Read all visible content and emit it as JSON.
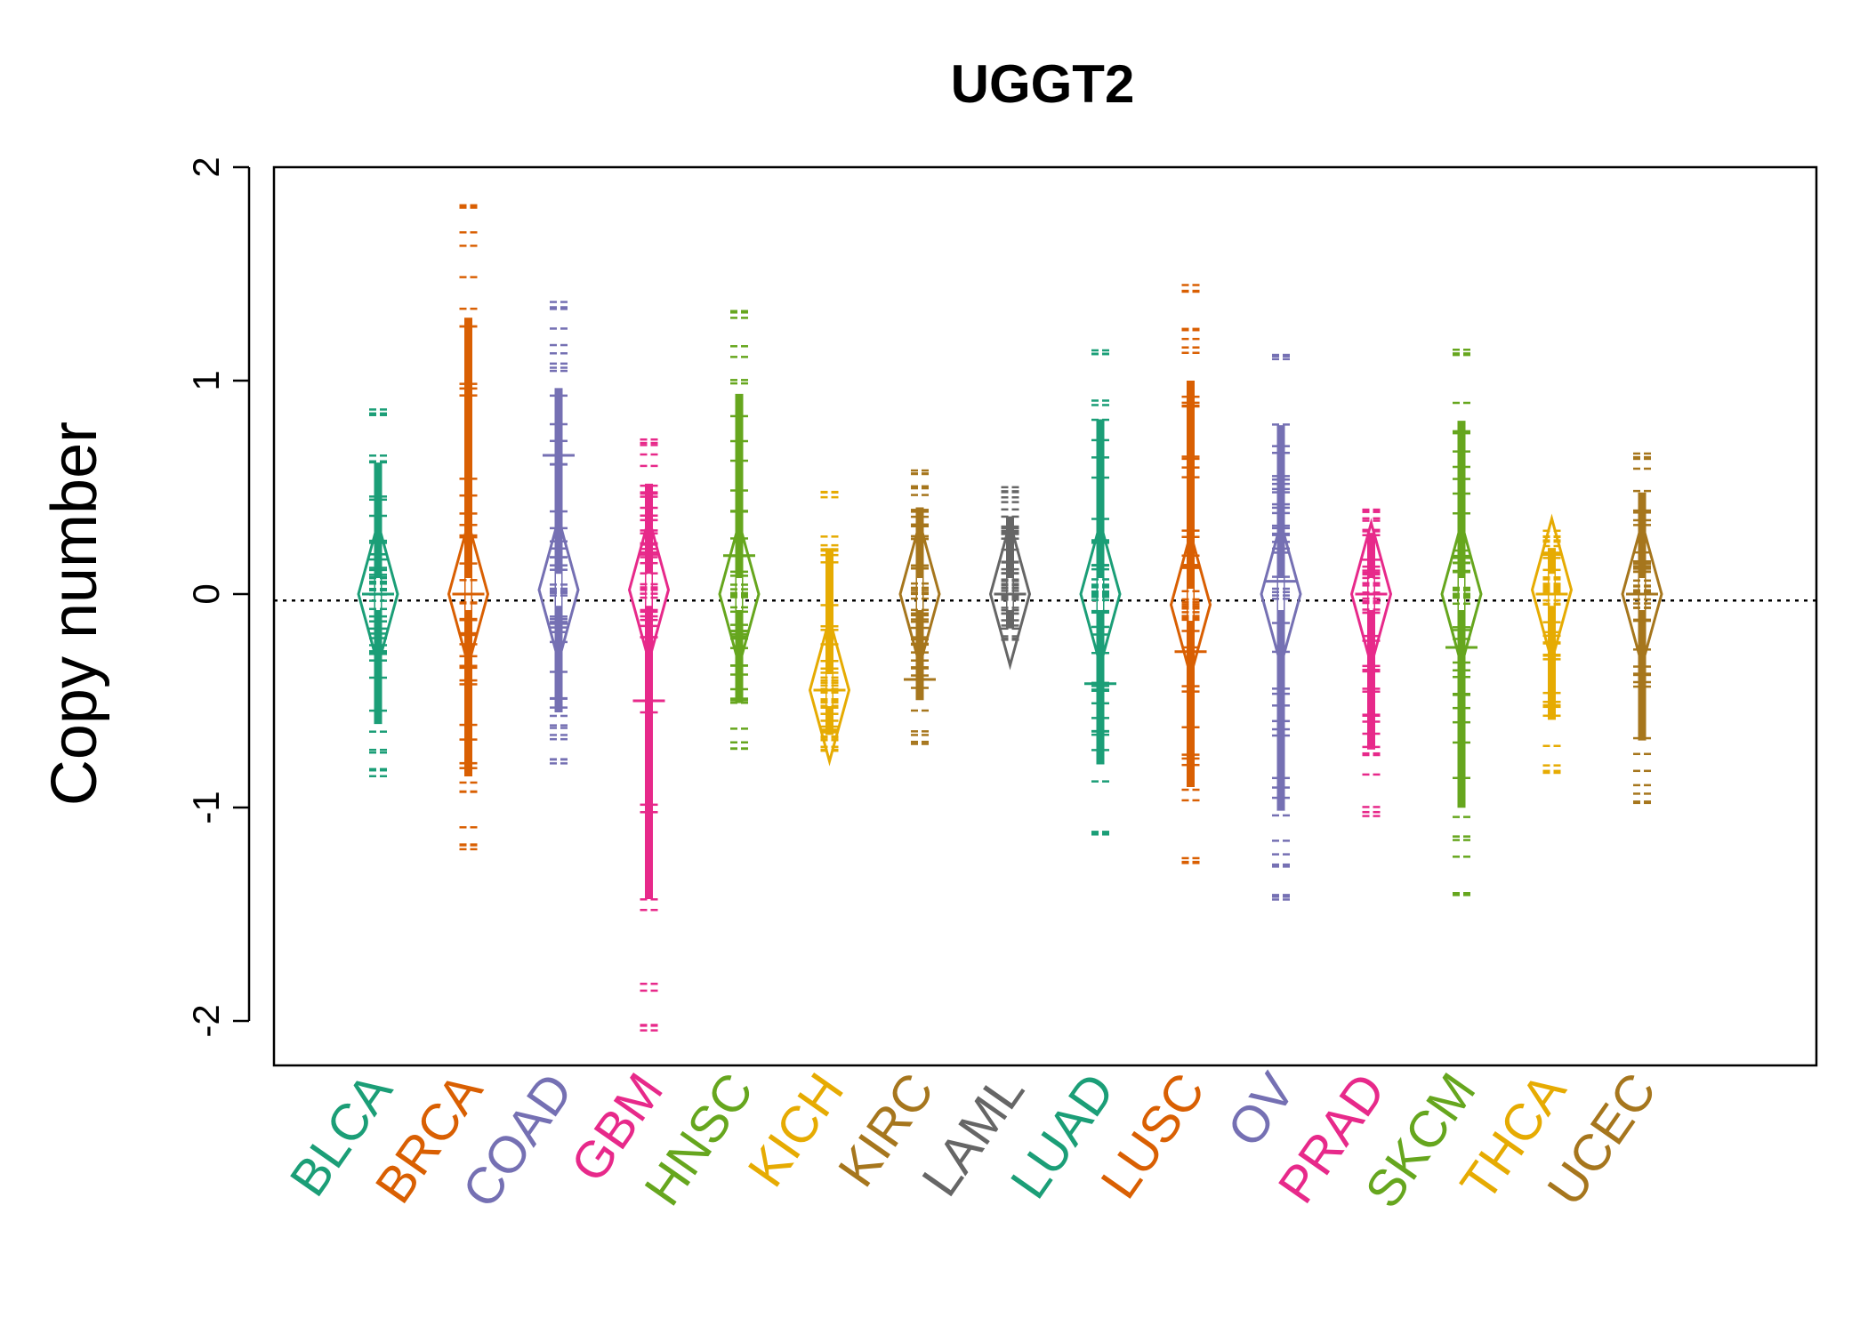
{
  "chart_data": {
    "type": "beanplot",
    "title": "UGGT2",
    "ylabel": "Copy number",
    "xlabel": "",
    "ylim": [
      -2.2,
      2.0
    ],
    "yticks": [
      -2,
      -1,
      0,
      1,
      2
    ],
    "reference_line": -0.03,
    "categories": [
      "BLCA",
      "BRCA",
      "COAD",
      "GBM",
      "HNSC",
      "KICH",
      "KIRC",
      "LAML",
      "LUAD",
      "LUSC",
      "OV",
      "PRAD",
      "SKCM",
      "THCA",
      "UCEC"
    ],
    "colors": [
      "#1b9e77",
      "#d95f02",
      "#7570b3",
      "#e7298a",
      "#66a61e",
      "#e6ab02",
      "#a6761d",
      "#666666",
      "#1b9e77",
      "#d95f02",
      "#7570b3",
      "#e7298a",
      "#66a61e",
      "#e6ab02",
      "#a6761d"
    ],
    "series": [
      {
        "category": "BLCA",
        "min": -0.87,
        "max": 0.88,
        "mean": 0.0,
        "peak": 0.0
      },
      {
        "category": "BRCA",
        "min": -1.22,
        "max": 1.85,
        "mean": 0.0,
        "peak": 0.0
      },
      {
        "category": "COAD",
        "min": -0.8,
        "max": 1.37,
        "mean": 0.65,
        "peak": 0.02
      },
      {
        "category": "GBM",
        "min": -2.05,
        "max": 0.73,
        "mean": -0.5,
        "peak": 0.02
      },
      {
        "category": "HNSC",
        "min": -0.73,
        "max": 1.34,
        "mean": 0.18,
        "peak": 0.0
      },
      {
        "category": "KICH",
        "min": -0.75,
        "max": 0.5,
        "mean": -0.45,
        "peak": -0.45
      },
      {
        "category": "KIRC",
        "min": -0.71,
        "max": 0.58,
        "mean": -0.4,
        "peak": 0.0
      },
      {
        "category": "LAML",
        "min": -0.23,
        "max": 0.52,
        "mean": 0.0,
        "peak": 0.0
      },
      {
        "category": "LUAD",
        "min": -1.14,
        "max": 1.17,
        "mean": -0.42,
        "peak": 0.0
      },
      {
        "category": "LUSC",
        "min": -1.27,
        "max": 1.45,
        "mean": -0.27,
        "peak": -0.05
      },
      {
        "category": "OV",
        "min": -1.45,
        "max": 1.13,
        "mean": 0.06,
        "peak": 0.0
      },
      {
        "category": "PRAD",
        "min": -1.04,
        "max": 0.41,
        "mean": 0.0,
        "peak": 0.0
      },
      {
        "category": "SKCM",
        "min": -1.43,
        "max": 1.16,
        "mean": -0.25,
        "peak": 0.0
      },
      {
        "category": "THCA",
        "min": -0.85,
        "max": 0.3,
        "mean": 0.0,
        "peak": 0.02
      },
      {
        "category": "UCEC",
        "min": -0.98,
        "max": 0.68,
        "mean": 0.0,
        "peak": 0.0
      }
    ]
  }
}
